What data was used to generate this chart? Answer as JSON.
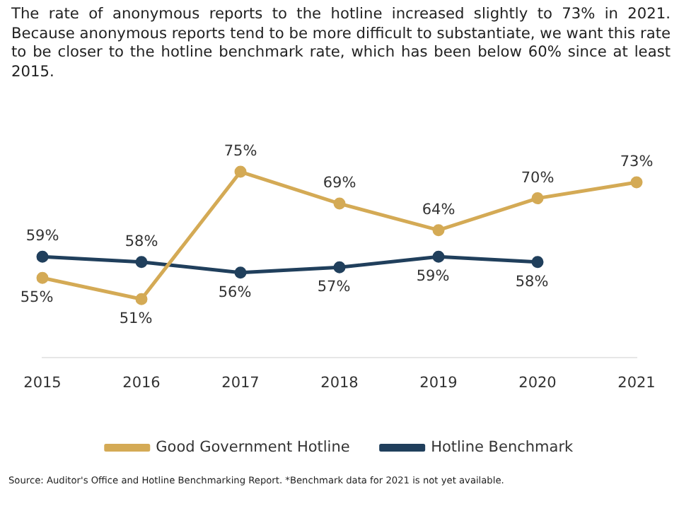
{
  "chart_data": {
    "type": "line",
    "title": "The rate of anonymous reports to the hotline increased slightly to 73% in 2021. Because anonymous reports tend to be more difficult to substantiate, we want this rate to be closer to the hotline benchmark rate, which has been below 60% since at least 2015.",
    "categories": [
      "2015",
      "2016",
      "2017",
      "2018",
      "2019",
      "2020",
      "2021"
    ],
    "series": [
      {
        "name": "Good Government Hotline",
        "color": "#d4aa55",
        "values": [
          55,
          51,
          75,
          69,
          64,
          70,
          73
        ],
        "value_labels": [
          "55%",
          "51%",
          "75%",
          "69%",
          "64%",
          "70%",
          "73%"
        ]
      },
      {
        "name": "Hotline Benchmark",
        "color": "#203f5c",
        "values": [
          59,
          58,
          56,
          57,
          59,
          58,
          null
        ],
        "value_labels": [
          "59%",
          "58%",
          "56%",
          "57%",
          "59%",
          "58%",
          null
        ]
      }
    ],
    "marker": "circle",
    "line_style": "solid",
    "grid": false,
    "legend": "bottom",
    "tick_labels": "x",
    "annotations": [
      "Source: Auditor's Office and Hotline Benchmarking Report. *Benchmark data for 2021 is not yet available."
    ]
  }
}
